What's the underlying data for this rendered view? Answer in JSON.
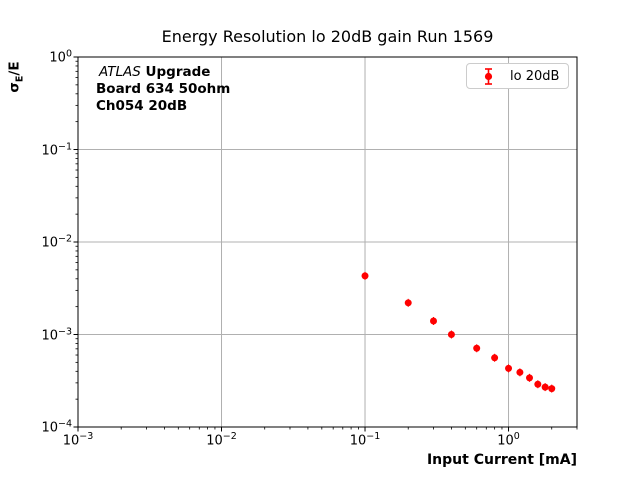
{
  "figure": {
    "background": "#ffffff"
  },
  "annotation": {
    "experiment": "ATLAS",
    "experiment_suffix": " Upgrade",
    "line2": "Board 634 50ohm",
    "line3": "Ch054 20dB"
  },
  "legend": {
    "entries": [
      {
        "label": "lo 20dB",
        "color": "#ff0000",
        "marker": "errorbar-dot"
      }
    ]
  },
  "colors": {
    "marker": "#ff0000",
    "grid": "#b0b0b0",
    "spine": "#000000",
    "legend_border": "#cccccc"
  },
  "ylabel_parts": {
    "sigma": "σ",
    "sub": "E",
    "rest": "/E"
  },
  "chart_data": {
    "type": "scatter",
    "title": "Energy Resolution lo 20dB gain Run 1569",
    "xlabel": "Input Current [mA]",
    "ylabel": "σE/E",
    "xscale": "log",
    "yscale": "log",
    "xlim": [
      0.001,
      3.0
    ],
    "ylim": [
      0.0001,
      1.0
    ],
    "grid": true,
    "legend_position": "upper right",
    "x_major_ticks": {
      "values": [
        0.001,
        0.01,
        0.1,
        1
      ],
      "exponent_labels": [
        "−3",
        "−2",
        "−1",
        "0"
      ]
    },
    "y_major_ticks": {
      "values": [
        1,
        0.1,
        0.01,
        0.001,
        0.0001
      ],
      "exponent_labels": [
        "0",
        "−1",
        "−2",
        "−3",
        "−4"
      ]
    },
    "series": [
      {
        "name": "lo 20dB",
        "color": "#ff0000",
        "marker": "circle-errorbar",
        "x": [
          0.1,
          0.2,
          0.3,
          0.4,
          0.6,
          0.8,
          1.0,
          1.2,
          1.4,
          1.6,
          1.8,
          2.0
        ],
        "y": [
          0.0043,
          0.0022,
          0.0014,
          0.001,
          0.00071,
          0.00056,
          0.00043,
          0.00039,
          0.00034,
          0.00029,
          0.00027,
          0.00026
        ]
      }
    ]
  }
}
